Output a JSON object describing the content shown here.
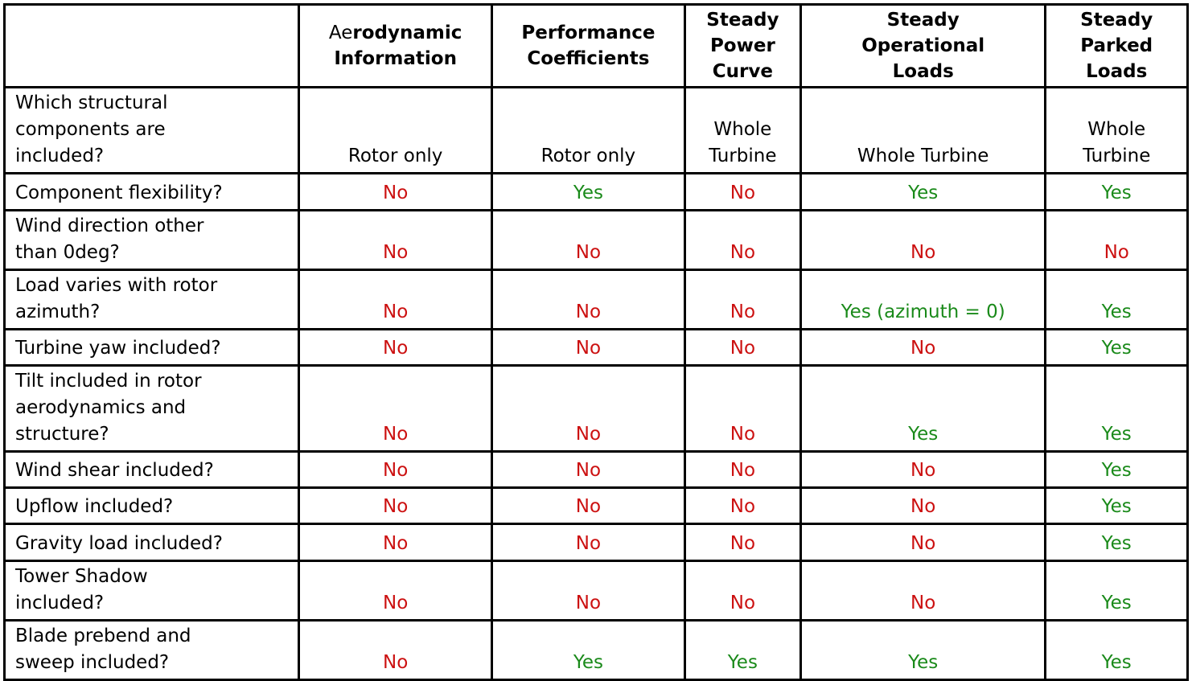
{
  "colors": {
    "yes": "#1a8a1a",
    "no": "#cc1111",
    "border": "#000000",
    "background": "#ffffff",
    "text": "#000000"
  },
  "table": {
    "columns": [
      {
        "label": "",
        "header_lines": []
      },
      {
        "label": "Aerodynamic Information",
        "header_lines": [
          "Aerodynamic",
          "Information"
        ],
        "regular_prefix": "Ae"
      },
      {
        "label": "Performance Coefficients",
        "header_lines": [
          "Performance",
          "Coefficients"
        ]
      },
      {
        "label": "Steady Power Curve",
        "header_lines": [
          "Steady",
          "Power",
          "Curve"
        ]
      },
      {
        "label": "Steady Operational Loads",
        "header_lines": [
          "Steady",
          "Operational",
          "Loads"
        ]
      },
      {
        "label": "Steady Parked Loads",
        "header_lines": [
          "Steady",
          "Parked",
          "Loads"
        ]
      }
    ],
    "rows": [
      {
        "label": "Which structural components are included?",
        "values": [
          "Rotor only",
          "Rotor only",
          "Whole Turbine",
          "Whole Turbine",
          "Whole Turbine"
        ]
      },
      {
        "label": "Component flexibility?",
        "values": [
          "No",
          "Yes",
          "No",
          "Yes",
          "Yes"
        ]
      },
      {
        "label": "Wind direction other than 0deg?",
        "values": [
          "No",
          "No",
          "No",
          "No",
          "No"
        ]
      },
      {
        "label": "Load varies with rotor azimuth?",
        "values": [
          "No",
          "No",
          "No",
          "Yes (azimuth = 0)",
          "Yes"
        ]
      },
      {
        "label": "Turbine yaw included?",
        "values": [
          "No",
          "No",
          "No",
          "No",
          "Yes"
        ]
      },
      {
        "label": "Tilt included in rotor aerodynamics and structure?",
        "values": [
          "No",
          "No",
          "No",
          "Yes",
          "Yes"
        ]
      },
      {
        "label": "Wind shear included?",
        "values": [
          "No",
          "No",
          "No",
          "No",
          "Yes"
        ]
      },
      {
        "label": "Upflow included?",
        "values": [
          "No",
          "No",
          "No",
          "No",
          "Yes"
        ]
      },
      {
        "label": "Gravity load included?",
        "values": [
          "No",
          "No",
          "No",
          "No",
          "Yes"
        ]
      },
      {
        "label": "Tower Shadow included?",
        "values": [
          "No",
          "No",
          "No",
          "No",
          "Yes"
        ]
      },
      {
        "label": "Blade prebend and sweep included?",
        "values": [
          "No",
          "Yes",
          "Yes",
          "Yes",
          "Yes"
        ]
      }
    ]
  }
}
